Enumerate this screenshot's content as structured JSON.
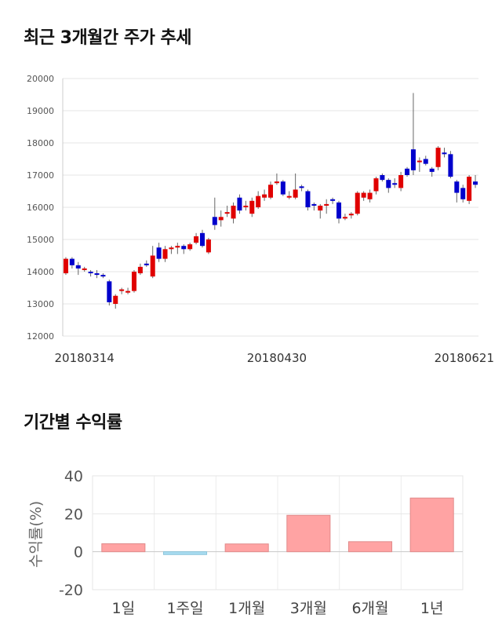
{
  "sections": {
    "price_title": "최근 3개월간 주가 추세",
    "return_title": "기간별 수익률"
  },
  "colors": {
    "up": "#e00000",
    "down": "#0000cc",
    "return_positive": "#ffa3a3",
    "return_negative": "#a8dcf0",
    "grid": "#e4e4e4"
  },
  "chart_data": [
    {
      "type": "candlestick",
      "title": "최근 3개월간 주가 추세",
      "ylim": [
        12000,
        20000
      ],
      "y_ticks": [
        12000,
        13000,
        14000,
        15000,
        16000,
        17000,
        18000,
        19000,
        20000
      ],
      "x_tick_labels": [
        {
          "label": "20180314",
          "index": 3
        },
        {
          "label": "20180430",
          "index": 34
        },
        {
          "label": "20180621",
          "index": 67
        }
      ],
      "grid": true,
      "candles": [
        [
          13950,
          14400,
          14450,
          13900
        ],
        [
          14400,
          14200,
          14450,
          14100
        ],
        [
          14200,
          14100,
          14300,
          13900
        ],
        [
          14100,
          14100,
          14150,
          14000
        ],
        [
          14000,
          13950,
          14050,
          13850
        ],
        [
          13950,
          13900,
          14050,
          13800
        ],
        [
          13900,
          13850,
          13950,
          13800
        ],
        [
          13700,
          13050,
          13750,
          12950
        ],
        [
          13000,
          13250,
          13300,
          12850
        ],
        [
          13400,
          13450,
          13500,
          13300
        ],
        [
          13350,
          13400,
          13500,
          13300
        ],
        [
          13400,
          14000,
          14050,
          13350
        ],
        [
          13950,
          14150,
          14250,
          13900
        ],
        [
          14250,
          14200,
          14350,
          14150
        ],
        [
          13850,
          14500,
          14800,
          13800
        ],
        [
          14750,
          14400,
          14900,
          14300
        ],
        [
          14400,
          14700,
          14800,
          14300
        ],
        [
          14700,
          14750,
          14800,
          14550
        ],
        [
          14750,
          14800,
          14900,
          14550
        ],
        [
          14800,
          14700,
          14850,
          14550
        ],
        [
          14700,
          14850,
          14900,
          14650
        ],
        [
          14900,
          15100,
          15200,
          14850
        ],
        [
          15200,
          14800,
          15300,
          14750
        ],
        [
          14600,
          15000,
          15050,
          14550
        ],
        [
          15700,
          15450,
          16300,
          15300
        ],
        [
          15600,
          15700,
          15900,
          15400
        ],
        [
          15800,
          15850,
          16050,
          15700
        ],
        [
          15650,
          16050,
          16150,
          15500
        ],
        [
          16300,
          15900,
          16400,
          15800
        ],
        [
          16000,
          16050,
          16200,
          15900
        ],
        [
          15800,
          16200,
          16300,
          15700
        ],
        [
          16000,
          16350,
          16500,
          15950
        ],
        [
          16300,
          16400,
          16550,
          16200
        ],
        [
          16300,
          16700,
          16800,
          16250
        ],
        [
          16800,
          16800,
          17050,
          16700
        ],
        [
          16800,
          16400,
          16850,
          16350
        ],
        [
          16350,
          16350,
          16500,
          16250
        ],
        [
          16300,
          16550,
          17050,
          16250
        ],
        [
          16650,
          16600,
          16700,
          16500
        ],
        [
          16500,
          16000,
          16550,
          15900
        ],
        [
          16100,
          16050,
          16150,
          15900
        ],
        [
          15900,
          16050,
          16100,
          15650
        ],
        [
          16050,
          16100,
          16250,
          15800
        ],
        [
          16250,
          16200,
          16300,
          16100
        ],
        [
          16150,
          15650,
          16200,
          15500
        ],
        [
          15700,
          15700,
          15800,
          15600
        ],
        [
          15750,
          15800,
          15850,
          15650
        ],
        [
          15800,
          16450,
          16500,
          15750
        ],
        [
          16300,
          16450,
          16500,
          16200
        ],
        [
          16250,
          16450,
          16550,
          16150
        ],
        [
          16500,
          16900,
          16950,
          16400
        ],
        [
          17000,
          16850,
          17050,
          16800
        ],
        [
          16850,
          16600,
          16900,
          16450
        ],
        [
          16750,
          16700,
          16900,
          16600
        ],
        [
          16600,
          17000,
          17100,
          16500
        ],
        [
          17200,
          17000,
          17250,
          16950
        ],
        [
          17800,
          17150,
          19550,
          17000
        ],
        [
          17400,
          17450,
          17550,
          17100
        ],
        [
          17500,
          17350,
          17600,
          17300
        ],
        [
          17200,
          17100,
          17250,
          16950
        ],
        [
          17250,
          17850,
          17900,
          17150
        ],
        [
          17700,
          17650,
          17850,
          17550
        ],
        [
          17650,
          16950,
          17750,
          16900
        ],
        [
          16800,
          16450,
          16850,
          16150
        ],
        [
          16600,
          16250,
          16700,
          16150
        ],
        [
          16200,
          16950,
          17000,
          16100
        ],
        [
          16800,
          16700,
          17000,
          16600
        ]
      ]
    },
    {
      "type": "bar",
      "title": "기간별 수익률",
      "categories": [
        "1일",
        "1주일",
        "1개월",
        "3개월",
        "6개월",
        "1년"
      ],
      "values": [
        4.2,
        -1.5,
        4.1,
        19.2,
        5.3,
        28.3
      ],
      "ylabel": "수익률(%)",
      "ylim": [
        -20,
        40
      ],
      "y_ticks": [
        -20,
        0,
        20,
        40
      ],
      "grid": true
    }
  ]
}
